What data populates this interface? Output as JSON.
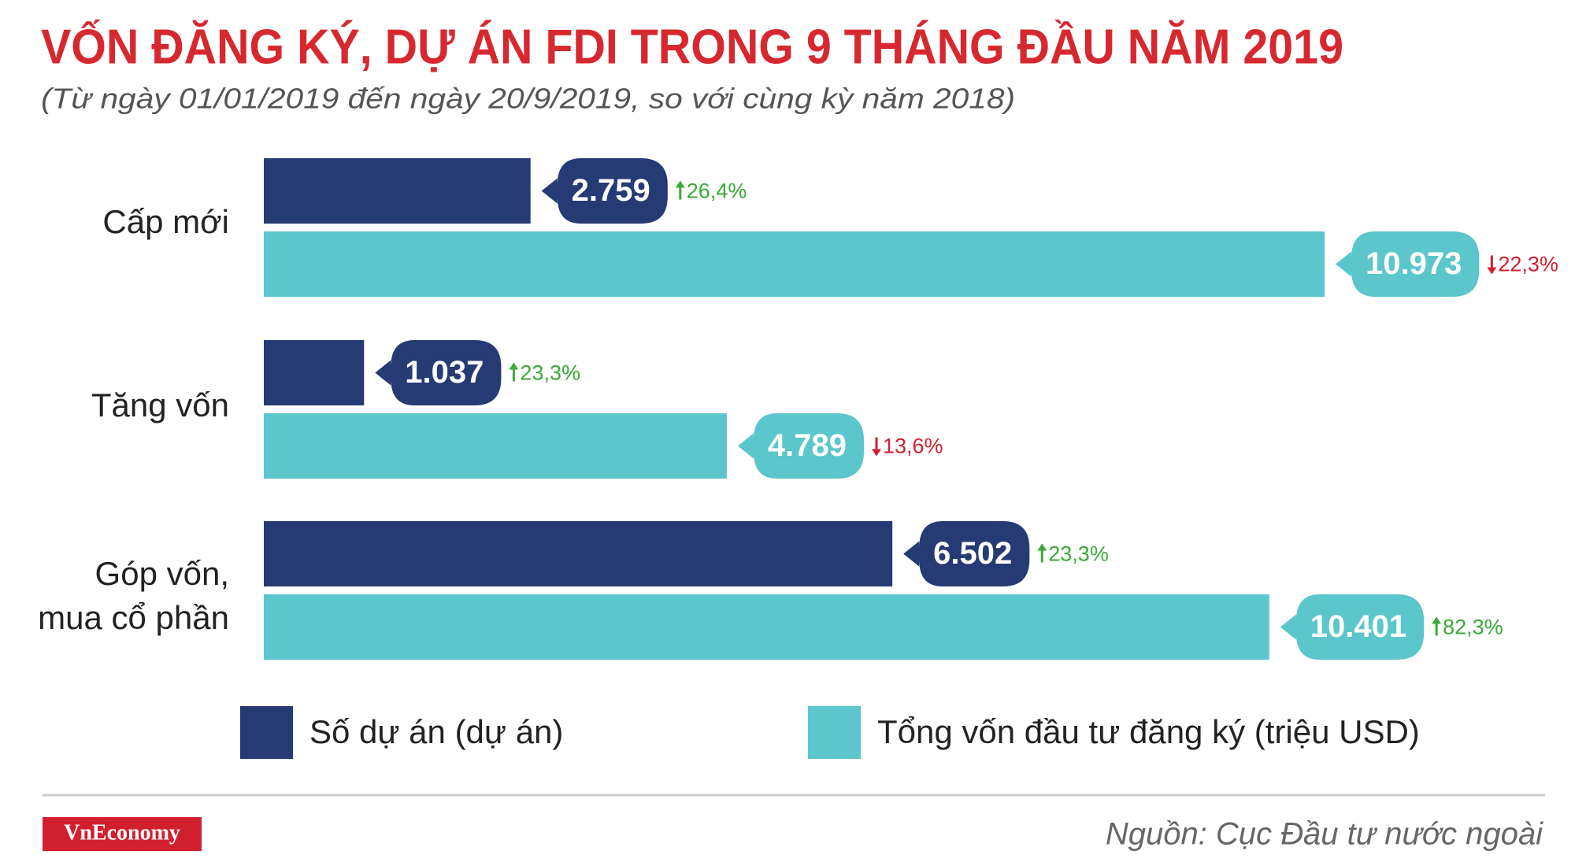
{
  "chart_data": {
    "type": "bar",
    "title": "VỐN ĐĂNG KÝ, DỰ ÁN FDI TRONG 9 THÁNG ĐẦU NĂM 2019",
    "subtitle": "(Từ ngày 01/01/2019 đến ngày 20/9/2019, so với cùng kỳ năm 2018)",
    "categories": [
      "Cấp mới",
      "Tăng vốn",
      "Góp vốn, mua cổ phần"
    ],
    "series": [
      {
        "name": "Số dự án (dự án)",
        "color": "#263a74",
        "values": [
          2759,
          1037,
          6502
        ],
        "value_labels": [
          "2.759",
          "1.037",
          "6.502"
        ],
        "changes": [
          26.4,
          23.3,
          23.3
        ],
        "change_labels": [
          "26,4%",
          "23,3%",
          "23,3%"
        ]
      },
      {
        "name": "Tổng vốn đầu tư đăng ký (triệu USD)",
        "color": "#5bc6cc",
        "values": [
          10973,
          4789,
          10401
        ],
        "value_labels": [
          "10.973",
          "4.789",
          "10.401"
        ],
        "changes": [
          -22.3,
          -13.6,
          82.3
        ],
        "change_labels": [
          "22,3%",
          "13,6%",
          "82,3%"
        ]
      }
    ],
    "up_color": "#3aaa35",
    "down_color": "#d0202e",
    "title_color": "#d7282f",
    "source": "Nguồn: Cục Đầu tư nước ngoài",
    "logo": "VnEconomy"
  }
}
